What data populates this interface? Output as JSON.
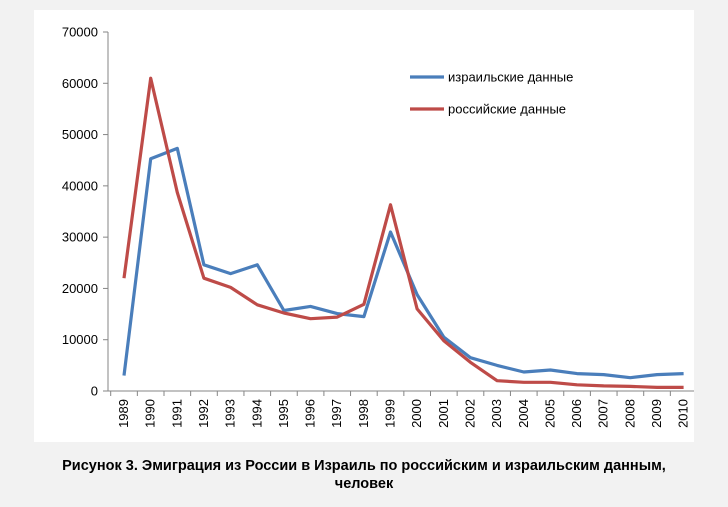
{
  "chart_data": {
    "type": "line",
    "title": "",
    "xlabel": "",
    "ylabel": "",
    "categories": [
      "1989",
      "1990",
      "1991",
      "1992",
      "1993",
      "1994",
      "1995",
      "1996",
      "1997",
      "1998",
      "1999",
      "2000",
      "2001",
      "2002",
      "2003",
      "2004",
      "2005",
      "2006",
      "2007",
      "2008",
      "2009",
      "2010"
    ],
    "y_ticks": [
      "0",
      "10000",
      "20000",
      "30000",
      "40000",
      "50000",
      "60000",
      "70000"
    ],
    "ylim": [
      0,
      70000
    ],
    "grid": false,
    "legend_position": "top-right",
    "series": [
      {
        "name": "израильские данные",
        "color": "#4a7ebb",
        "values": [
          3000,
          45300,
          47300,
          24600,
          22900,
          24600,
          15700,
          16500,
          15100,
          14500,
          31000,
          18800,
          10500,
          6500,
          5000,
          3700,
          4100,
          3400,
          3200,
          2600,
          3200,
          3400
        ]
      },
      {
        "name": "российские данные",
        "color": "#be4b48",
        "values": [
          22000,
          61000,
          38700,
          22000,
          20200,
          16800,
          15200,
          14100,
          14400,
          16900,
          36300,
          16000,
          9800,
          5600,
          2000,
          1700,
          1700,
          1200,
          1000,
          900,
          700,
          700
        ]
      }
    ]
  },
  "caption": {
    "line1": "Рисунок 3. Эмиграция из России в Израиль по российским и израильским данным,",
    "line2": "человек"
  }
}
